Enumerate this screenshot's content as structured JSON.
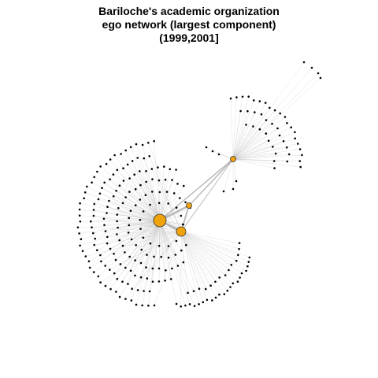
{
  "title": {
    "line1": "Bariloche's academic organization",
    "line2": "ego network (largest component)",
    "line3": "(1999,2001]"
  },
  "colors": {
    "hub_fill": "#f0a30a",
    "hub_stroke": "#333333",
    "peripheral_node": "#000000",
    "edge": "#bdbdbd"
  }
}
